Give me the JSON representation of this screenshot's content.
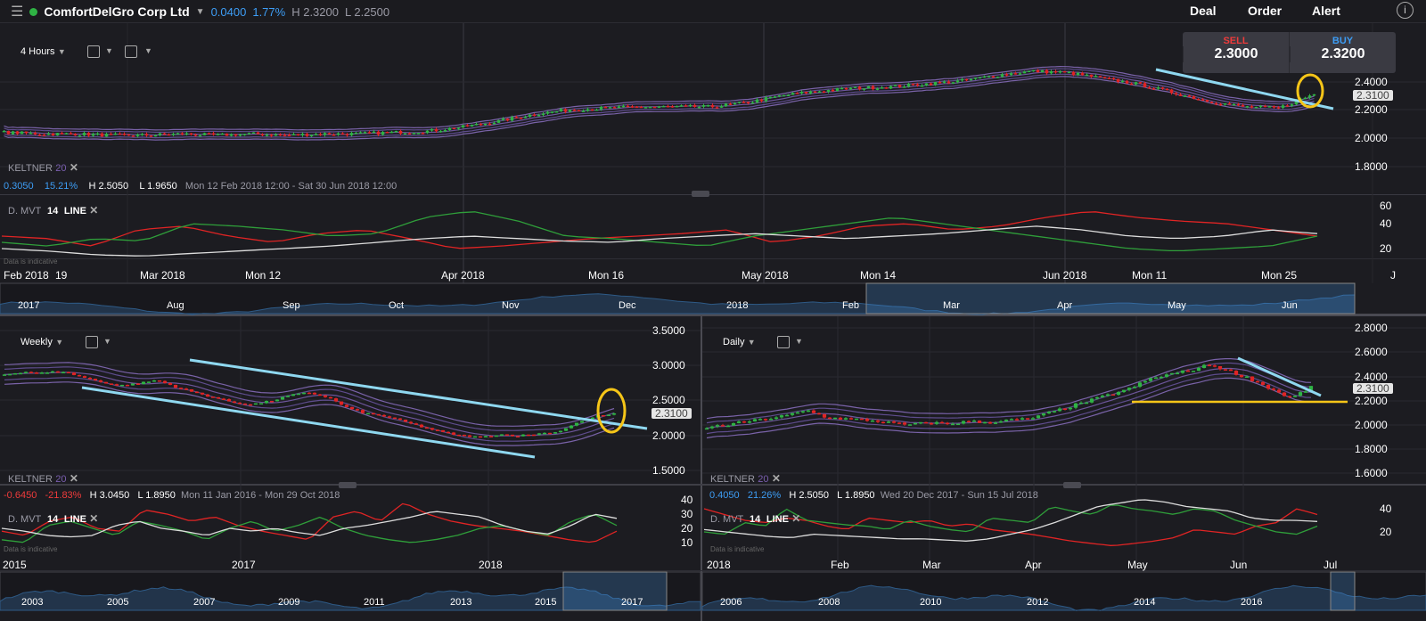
{
  "header": {
    "instrument": "ComfortDelGro Corp Ltd",
    "change": "0.0400",
    "change_pct": "1.77%",
    "high": "H 2.3200",
    "low": "L 2.2500",
    "status_color": "#2fb344",
    "deal": "Deal",
    "order": "Order",
    "alert": "Alert"
  },
  "deal_ticket": {
    "sell_label": "SELL",
    "sell_price": "2.3000",
    "buy_label": "BUY",
    "buy_price": "2.3200"
  },
  "colors": {
    "up": "#2fb344",
    "down": "#e02424",
    "trend": "#8fd8f0",
    "highlight": "#f5c518",
    "keltner": "#7b5fb0"
  },
  "top": {
    "interval": "4 Hours",
    "keltner": "KELTNER",
    "keltner_period": "20",
    "stats": {
      "change": "0.3050",
      "pct": "15.21%",
      "high": "H 2.5050",
      "low": "L 1.9650",
      "range": "Mon 12 Feb 2018 12:00 - Sat 30 Jun 2018 12:00"
    },
    "indicator": {
      "name": "D. MVT",
      "period": "14",
      "type": "LINE",
      "note": "Data is indicative"
    },
    "price_labels": [
      "2.4000",
      "2.2000",
      "2.0000",
      "1.8000"
    ],
    "last_price": "2.3100",
    "ind_labels": [
      "60",
      "40",
      "20"
    ],
    "date_labels": [
      "Feb 2018",
      "19",
      "Mar 2018",
      "Mon 12",
      "Apr 2018",
      "Mon 16",
      "May 2018",
      "Mon 14",
      "Jun 2018",
      "Mon 11",
      "Mon 25",
      "J"
    ],
    "nav_labels": [
      "2017",
      "Aug",
      "Sep",
      "Oct",
      "Nov",
      "Dec",
      "2018",
      "Feb",
      "Mar",
      "Apr",
      "May",
      "Jun"
    ],
    "closes": [
      2.04,
      2.03,
      2.03,
      2.02,
      2.02,
      2.03,
      2.02,
      2.03,
      2.02,
      2.03,
      2.03,
      2.04,
      2.05,
      2.08,
      2.12,
      2.17,
      2.2,
      2.21,
      2.22,
      2.22,
      2.22,
      2.25,
      2.3,
      2.33,
      2.35,
      2.36,
      2.38,
      2.4,
      2.44,
      2.47,
      2.46,
      2.42,
      2.38,
      2.32,
      2.26,
      2.22,
      2.21,
      2.31
    ],
    "mvt": {
      "red": [
        30,
        28,
        22,
        35,
        38,
        30,
        25,
        32,
        35,
        28,
        20,
        22,
        25,
        28,
        30,
        32,
        35,
        25,
        30,
        38,
        40,
        35,
        38,
        45,
        50,
        45,
        42,
        40,
        35,
        30
      ],
      "green": [
        25,
        22,
        28,
        26,
        40,
        38,
        35,
        30,
        32,
        45,
        50,
        42,
        30,
        28,
        25,
        22,
        30,
        35,
        40,
        45,
        40,
        35,
        30,
        25,
        20,
        18,
        20,
        22,
        30
      ],
      "white": [
        20,
        18,
        15,
        14,
        16,
        18,
        20,
        22,
        25,
        28,
        30,
        28,
        26,
        25,
        28,
        30,
        32,
        30,
        28,
        30,
        32,
        35,
        38,
        35,
        30,
        28,
        30,
        35,
        32
      ]
    }
  },
  "weekly": {
    "interval": "Weekly",
    "keltner": "KELTNER",
    "keltner_period": "20",
    "stats": {
      "change": "-0.6450",
      "pct": "-21.83%",
      "high": "H 3.0450",
      "low": "L 1.8950",
      "range": "Mon 11 Jan 2016 - Mon 29 Oct 2018"
    },
    "indicator": {
      "name": "D. MVT",
      "period": "14",
      "type": "LINE",
      "note": "Data is indicative"
    },
    "price_labels": [
      "3.5000",
      "3.0000",
      "2.5000",
      "2.0000",
      "1.5000"
    ],
    "last_price": "2.3100",
    "ind_labels": [
      "40",
      "30",
      "20",
      "10"
    ],
    "date_labels": [
      "2015",
      "2017",
      "2018"
    ],
    "nav_labels": [
      "2003",
      "2005",
      "2007",
      "2009",
      "2011",
      "2013",
      "2015",
      "2017"
    ],
    "closes": [
      2.88,
      2.92,
      2.9,
      2.93,
      2.85,
      2.78,
      2.72,
      2.75,
      2.8,
      2.7,
      2.62,
      2.55,
      2.48,
      2.45,
      2.5,
      2.58,
      2.62,
      2.55,
      2.4,
      2.32,
      2.28,
      2.2,
      2.12,
      2.05,
      2.0,
      1.98,
      2.02,
      2.0,
      2.03,
      2.05,
      2.18,
      2.28,
      2.31
    ],
    "mvt": {
      "red": [
        18,
        15,
        25,
        28,
        20,
        18,
        33,
        30,
        25,
        28,
        22,
        18,
        15,
        12,
        28,
        32,
        25,
        38,
        30,
        25,
        22,
        20,
        18,
        15,
        12,
        10,
        18
      ],
      "green": [
        12,
        10,
        22,
        25,
        20,
        15,
        25,
        22,
        18,
        12,
        20,
        25,
        18,
        22,
        28,
        20,
        15,
        12,
        10,
        12,
        15,
        20,
        22,
        18,
        15,
        25,
        30,
        22
      ],
      "white": [
        20,
        18,
        15,
        14,
        15,
        22,
        25,
        20,
        18,
        15,
        20,
        18,
        20,
        17,
        15,
        20,
        22,
        25,
        28,
        32,
        30,
        28,
        22,
        18,
        16,
        22,
        30,
        27
      ]
    }
  },
  "daily": {
    "interval": "Daily",
    "keltner": "KELTNER",
    "keltner_period": "20",
    "stats": {
      "change": "0.4050",
      "pct": "21.26%",
      "high": "H 2.5050",
      "low": "L 1.8950",
      "range": "Wed 20 Dec 2017 - Sun 15 Jul 2018"
    },
    "indicator": {
      "name": "D. MVT",
      "period": "14",
      "type": "LINE",
      "note": "Data is indicative"
    },
    "price_labels": [
      "2.8000",
      "2.6000",
      "2.4000",
      "2.2000",
      "2.0000",
      "1.8000",
      "1.6000"
    ],
    "last_price": "2.3100",
    "ind_labels": [
      "40",
      "20"
    ],
    "date_labels": [
      "2018",
      "Feb",
      "Mar",
      "Apr",
      "May",
      "Jun",
      "Jul"
    ],
    "nav_labels": [
      "2006",
      "2008",
      "2010",
      "2012",
      "2014",
      "2016"
    ],
    "closes": [
      1.98,
      2.0,
      2.03,
      2.05,
      2.08,
      2.12,
      2.06,
      2.05,
      2.04,
      2.02,
      2.0,
      2.02,
      2.01,
      2.03,
      2.02,
      2.04,
      2.05,
      2.1,
      2.15,
      2.2,
      2.25,
      2.3,
      2.38,
      2.42,
      2.45,
      2.5,
      2.44,
      2.38,
      2.3,
      2.22,
      2.31
    ],
    "mvt": {
      "red": [
        40,
        35,
        30,
        28,
        32,
        30,
        25,
        22,
        32,
        30,
        28,
        30,
        25,
        27,
        22,
        20,
        18,
        15,
        12,
        10,
        8,
        10,
        12,
        15,
        22,
        20,
        18,
        25,
        28,
        40,
        35
      ],
      "green": [
        20,
        18,
        28,
        25,
        40,
        30,
        28,
        26,
        25,
        22,
        30,
        25,
        22,
        20,
        32,
        30,
        28,
        42,
        38,
        35,
        44,
        40,
        38,
        35,
        40,
        38,
        30,
        25,
        20,
        18,
        25
      ],
      "white": [
        22,
        20,
        18,
        16,
        15,
        18,
        17,
        16,
        15,
        14,
        14,
        13,
        12,
        14,
        18,
        22,
        28,
        35,
        42,
        45,
        48,
        46,
        42,
        40,
        38,
        32,
        30,
        30,
        29
      ]
    }
  }
}
